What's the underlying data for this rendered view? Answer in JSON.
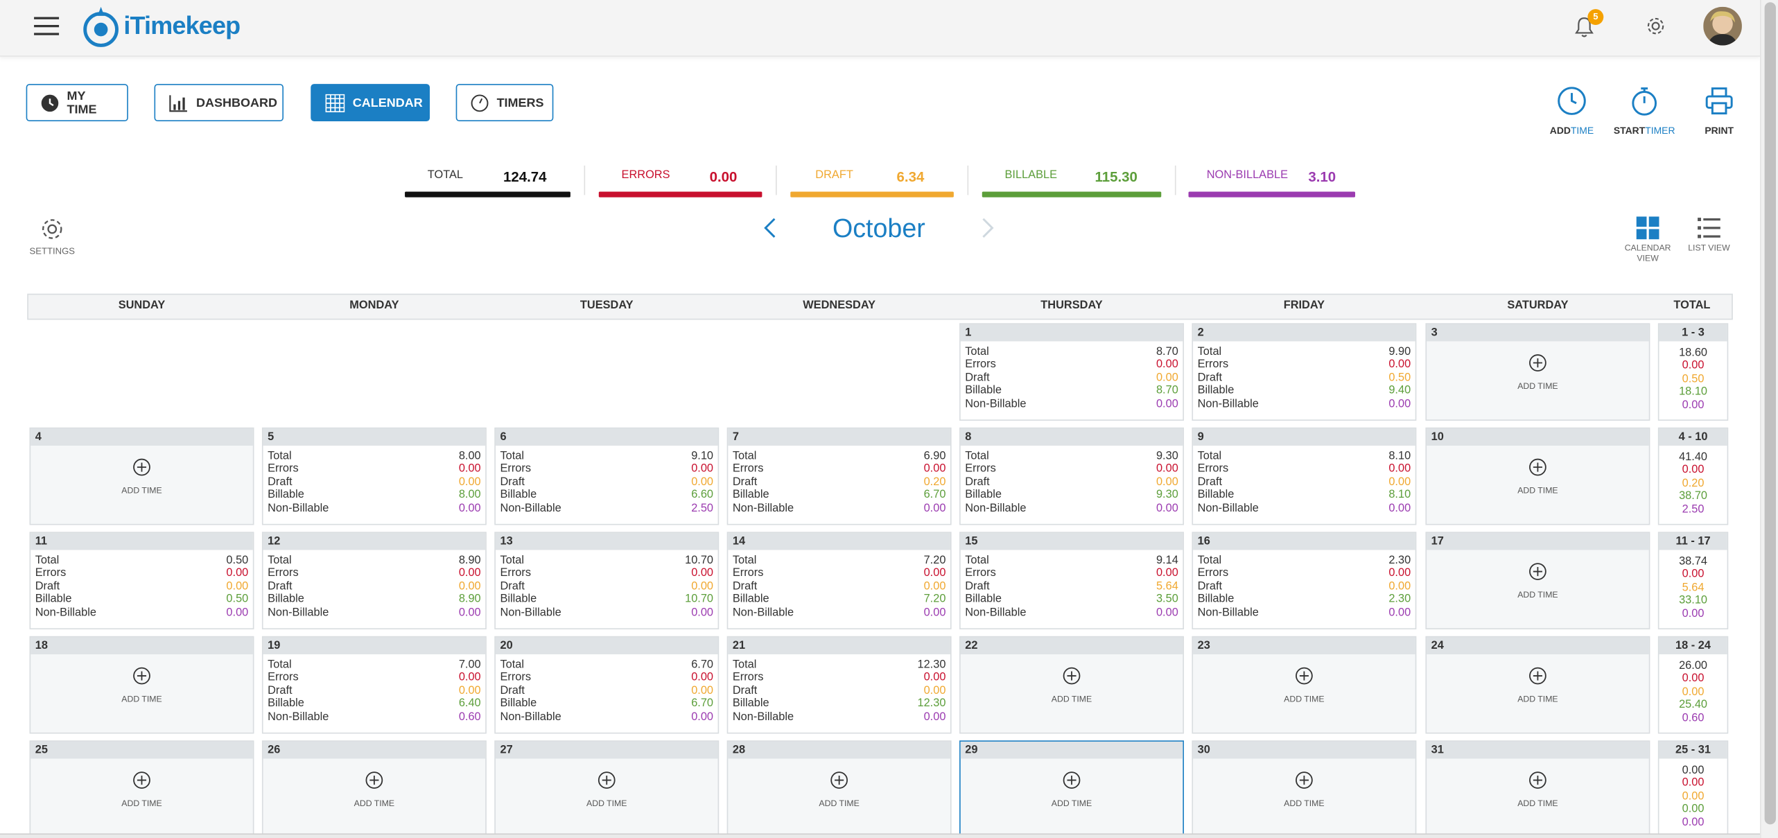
{
  "app": {
    "name": "iTimekeep",
    "notification_count": "5"
  },
  "nav": [
    {
      "label": "MY TIME",
      "icon": "clock-icon",
      "active": false
    },
    {
      "label": "DASHBOARD",
      "icon": "chart-icon",
      "active": false
    },
    {
      "label": "CALENDAR",
      "icon": "calendar-grid-icon",
      "active": true
    },
    {
      "label": "TIMERS",
      "icon": "stopwatch-icon",
      "active": false
    }
  ],
  "actions": {
    "add": {
      "a": "ADD",
      "b": "TIME"
    },
    "start": {
      "a": "START",
      "b": "TIMER"
    },
    "print": {
      "a": "PRINT"
    }
  },
  "summary": {
    "total": {
      "label": "TOTAL",
      "value": "124.74"
    },
    "errors": {
      "label": "ERRORS",
      "value": "0.00"
    },
    "draft": {
      "label": "DRAFT",
      "value": "6.34"
    },
    "billable": {
      "label": "BILLABLE",
      "value": "115.30"
    },
    "nonbillable": {
      "label": "NON-BILLABLE",
      "value": "3.10"
    }
  },
  "colors": {
    "primary": "#1b7fc4",
    "errors": "#c8102e",
    "draft": "#f0a830",
    "billable": "#5c9e3a",
    "nonbillable": "#9b3bb0"
  },
  "calendar": {
    "settings_label": "SETTINGS",
    "month": "October",
    "views": {
      "calendar": "CALENDAR VIEW",
      "list": "LIST VIEW"
    },
    "day_headers": [
      "SUNDAY",
      "MONDAY",
      "TUESDAY",
      "WEDNESDAY",
      "THURSDAY",
      "FRIDAY",
      "SATURDAY",
      "TOTAL"
    ],
    "row_labels": [
      "Total",
      "Errors",
      "Draft",
      "Billable",
      "Non-Billable"
    ],
    "add_time_label": "ADD TIME",
    "today": "29",
    "weeks": [
      {
        "range": "1 - 3",
        "totals": [
          "18.60",
          "0.00",
          "0.50",
          "18.10",
          "0.00"
        ],
        "days": [
          null,
          null,
          null,
          null,
          {
            "d": "1",
            "v": [
              "8.70",
              "0.00",
              "0.00",
              "8.70",
              "0.00"
            ]
          },
          {
            "d": "2",
            "v": [
              "9.90",
              "0.00",
              "0.50",
              "9.40",
              "0.00"
            ]
          },
          {
            "d": "3",
            "v": null
          }
        ]
      },
      {
        "range": "4 - 10",
        "totals": [
          "41.40",
          "0.00",
          "0.20",
          "38.70",
          "2.50"
        ],
        "days": [
          {
            "d": "4",
            "v": null
          },
          {
            "d": "5",
            "v": [
              "8.00",
              "0.00",
              "0.00",
              "8.00",
              "0.00"
            ]
          },
          {
            "d": "6",
            "v": [
              "9.10",
              "0.00",
              "0.00",
              "6.60",
              "2.50"
            ]
          },
          {
            "d": "7",
            "v": [
              "6.90",
              "0.00",
              "0.20",
              "6.70",
              "0.00"
            ]
          },
          {
            "d": "8",
            "v": [
              "9.30",
              "0.00",
              "0.00",
              "9.30",
              "0.00"
            ]
          },
          {
            "d": "9",
            "v": [
              "8.10",
              "0.00",
              "0.00",
              "8.10",
              "0.00"
            ]
          },
          {
            "d": "10",
            "v": null
          }
        ]
      },
      {
        "range": "11 - 17",
        "totals": [
          "38.74",
          "0.00",
          "5.64",
          "33.10",
          "0.00"
        ],
        "days": [
          {
            "d": "11",
            "v": [
              "0.50",
              "0.00",
              "0.00",
              "0.50",
              "0.00"
            ]
          },
          {
            "d": "12",
            "v": [
              "8.90",
              "0.00",
              "0.00",
              "8.90",
              "0.00"
            ]
          },
          {
            "d": "13",
            "v": [
              "10.70",
              "0.00",
              "0.00",
              "10.70",
              "0.00"
            ]
          },
          {
            "d": "14",
            "v": [
              "7.20",
              "0.00",
              "0.00",
              "7.20",
              "0.00"
            ]
          },
          {
            "d": "15",
            "v": [
              "9.14",
              "0.00",
              "5.64",
              "3.50",
              "0.00"
            ]
          },
          {
            "d": "16",
            "v": [
              "2.30",
              "0.00",
              "0.00",
              "2.30",
              "0.00"
            ]
          },
          {
            "d": "17",
            "v": null
          }
        ]
      },
      {
        "range": "18 - 24",
        "totals": [
          "26.00",
          "0.00",
          "0.00",
          "25.40",
          "0.60"
        ],
        "days": [
          {
            "d": "18",
            "v": null
          },
          {
            "d": "19",
            "v": [
              "7.00",
              "0.00",
              "0.00",
              "6.40",
              "0.60"
            ]
          },
          {
            "d": "20",
            "v": [
              "6.70",
              "0.00",
              "0.00",
              "6.70",
              "0.00"
            ]
          },
          {
            "d": "21",
            "v": [
              "12.30",
              "0.00",
              "0.00",
              "12.30",
              "0.00"
            ]
          },
          {
            "d": "22",
            "v": null
          },
          {
            "d": "23",
            "v": null
          },
          {
            "d": "24",
            "v": null
          }
        ]
      },
      {
        "range": "25 - 31",
        "totals": [
          "0.00",
          "0.00",
          "0.00",
          "0.00",
          "0.00"
        ],
        "days": [
          {
            "d": "25",
            "v": null
          },
          {
            "d": "26",
            "v": null
          },
          {
            "d": "27",
            "v": null
          },
          {
            "d": "28",
            "v": null
          },
          {
            "d": "29",
            "v": null
          },
          {
            "d": "30",
            "v": null
          },
          {
            "d": "31",
            "v": null
          }
        ]
      }
    ]
  }
}
